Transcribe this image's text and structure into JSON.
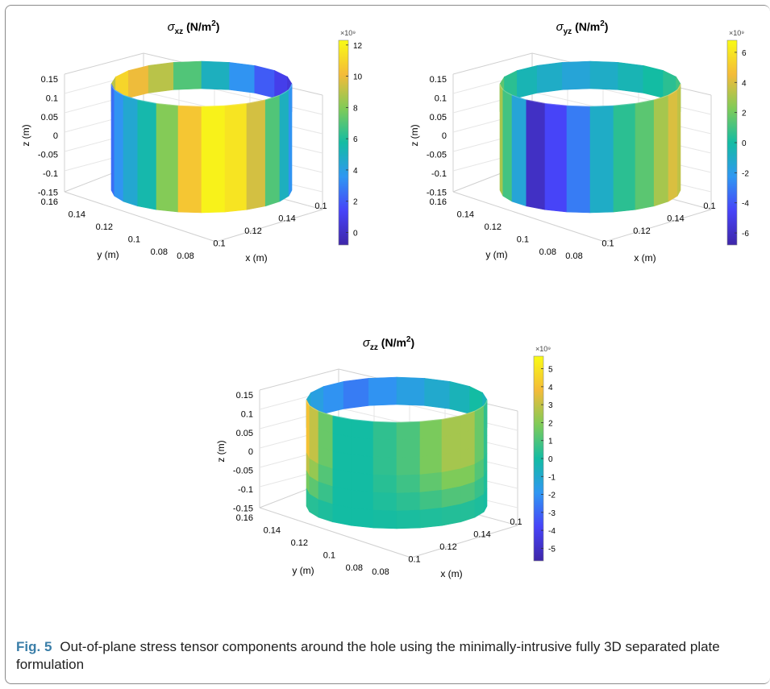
{
  "caption": {
    "label": "Fig. 5",
    "text": "Out-of-plane stress tensor components around the hole using the minimally-intrusive fully 3D separated plate formulation"
  },
  "colormap": [
    "#3e26a8",
    "#4743f8",
    "#2f97f2",
    "#13bca3",
    "#80cb58",
    "#f4bb39",
    "#f9fb15"
  ],
  "chart_data": [
    {
      "type": "surface",
      "title": "σ_xz (N/m²)",
      "title_symbol": "σ",
      "title_sub": "xz",
      "title_unit": "(N/m",
      "title_sup": "2",
      "title_close": ")",
      "xlabel": "x (m)",
      "ylabel": "y (m)",
      "zlabel": "z (m)",
      "x_ticks": [
        "0.08",
        "0.1",
        "0.12",
        "0.14",
        "0.1"
      ],
      "y_ticks": [
        "0.16",
        "0.14",
        "0.12",
        "0.1",
        "0.08"
      ],
      "z_ticks": [
        "0.15",
        "0.1",
        "0.05",
        "0",
        "-0.05",
        "-0.1",
        "-0.15"
      ],
      "colorbar_multiplier": "×10⁹",
      "colorbar_ticks": [
        "12",
        "10",
        "8",
        "6",
        "4",
        "2",
        "0"
      ],
      "colorbar_range": [
        -0.8,
        12.3
      ],
      "front_bands": [
        2.5,
        3.5,
        4.5,
        5.5,
        8.0,
        10.5,
        12.0,
        11.5,
        9.5,
        7.0,
        5.0,
        3.5
      ],
      "front_vertical_variation": false,
      "inner_bands": [
        9.0,
        11.0,
        10.0,
        9.0,
        7.0,
        5.0,
        3.5,
        2.0,
        1.0,
        0.5
      ]
    },
    {
      "type": "surface",
      "title": "σ_yz (N/m²)",
      "title_symbol": "σ",
      "title_sub": "yz",
      "title_unit": "(N/m",
      "title_sup": "2",
      "title_close": ")",
      "xlabel": "x (m)",
      "ylabel": "y (m)",
      "zlabel": "z (m)",
      "x_ticks": [
        "0.08",
        "0.1",
        "0.12",
        "0.14",
        "0.1"
      ],
      "y_ticks": [
        "0.16",
        "0.14",
        "0.12",
        "0.1",
        "0.08"
      ],
      "z_ticks": [
        "0.15",
        "0.1",
        "0.05",
        "0",
        "-0.05",
        "-0.1",
        "-0.15"
      ],
      "colorbar_multiplier": "×10⁹",
      "colorbar_ticks": [
        "6",
        "4",
        "2",
        "0",
        "-2",
        "-4",
        "-6"
      ],
      "colorbar_range": [
        -6.8,
        6.8
      ],
      "front_bands": [
        3.0,
        1.0,
        -1.5,
        -6.0,
        -4.5,
        -3.0,
        -1.0,
        0.5,
        1.5,
        3.0,
        4.0,
        3.5
      ],
      "front_vertical_variation": false,
      "inner_bands": [
        1.5,
        0.5,
        -0.5,
        -1.0,
        -1.5,
        -1.0,
        -0.5,
        0.0,
        0.5,
        1.0
      ]
    },
    {
      "type": "surface",
      "title": "σ_zz (N/m²)",
      "title_symbol": "σ",
      "title_sub": "zz",
      "title_unit": "(N/m",
      "title_sup": "2",
      "title_close": ")",
      "xlabel": "x (m)",
      "ylabel": "y (m)",
      "zlabel": "z (m)",
      "x_ticks": [
        "0.08",
        "0.1",
        "0.12",
        "0.14",
        "0.1"
      ],
      "y_ticks": [
        "0.16",
        "0.14",
        "0.12",
        "0.1",
        "0.08"
      ],
      "z_ticks": [
        "0.15",
        "0.1",
        "0.05",
        "0",
        "-0.05",
        "-0.1",
        "-0.15"
      ],
      "colorbar_multiplier": "×10⁹",
      "colorbar_ticks": [
        "5",
        "4",
        "3",
        "2",
        "1",
        "0",
        "-1",
        "-2",
        "-3",
        "-4",
        "-5"
      ],
      "colorbar_range": [
        -5.7,
        5.7
      ],
      "front_bands": [
        4.0,
        3.0,
        1.5,
        0.5,
        -0.2,
        0.5,
        1.0,
        1.8,
        2.5,
        2.5,
        1.5,
        0.5
      ],
      "front_vertical_variation": true,
      "inner_bands": [
        -1.0,
        -1.5,
        -2.0,
        -2.5,
        -2.0,
        -1.5,
        -1.0,
        -0.5,
        0.0,
        -0.5
      ]
    }
  ]
}
